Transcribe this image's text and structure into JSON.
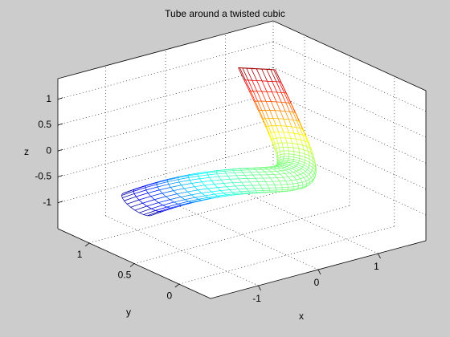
{
  "chart_data": {
    "type": "tube3d",
    "title": "Tube around a twisted cubic",
    "xlabel": "x",
    "ylabel": "y",
    "zlabel": "z",
    "x": [
      -1,
      -0.95,
      -0.9,
      -0.85,
      -0.8,
      -0.75,
      -0.7,
      -0.65,
      -0.6,
      -0.55,
      -0.5,
      -0.45,
      -0.4,
      -0.35,
      -0.3,
      -0.25,
      -0.2,
      -0.15,
      -0.1,
      -0.05,
      0,
      0.05,
      0.1,
      0.15,
      0.2,
      0.25,
      0.3,
      0.35,
      0.4,
      0.45,
      0.5,
      0.55,
      0.6,
      0.65,
      0.7,
      0.75,
      0.8,
      0.85,
      0.9,
      0.95,
      1
    ],
    "y": [
      1,
      0.9025,
      0.81,
      0.7225,
      0.64,
      0.5625,
      0.49,
      0.4225,
      0.36,
      0.3025,
      0.25,
      0.2025,
      0.16,
      0.1225,
      0.09,
      0.0625,
      0.04,
      0.0225,
      0.01,
      0.0025,
      0,
      0.0025,
      0.01,
      0.0225,
      0.04,
      0.0625,
      0.09,
      0.1225,
      0.16,
      0.2025,
      0.25,
      0.3025,
      0.36,
      0.4225,
      0.49,
      0.5625,
      0.64,
      0.7225,
      0.81,
      0.9025,
      1
    ],
    "z": [
      -1,
      -0.8574,
      -0.729,
      -0.6141,
      -0.512,
      -0.4219,
      -0.343,
      -0.2746,
      -0.216,
      -0.1664,
      -0.125,
      -0.0911,
      -0.064,
      -0.0429,
      -0.027,
      -0.0156,
      -0.008,
      -0.0034,
      -0.001,
      -0.0001,
      0,
      0.0001,
      0.001,
      0.0034,
      0.008,
      0.0156,
      0.027,
      0.0429,
      0.064,
      0.0911,
      0.125,
      0.1664,
      0.216,
      0.2746,
      0.343,
      0.4219,
      0.512,
      0.6141,
      0.729,
      0.8574,
      1
    ],
    "xlim": [
      -1.8,
      1.8
    ],
    "ylim": [
      -0.35,
      1.35
    ],
    "zlim": [
      -1.5,
      1.4
    ],
    "xticks": [
      -1,
      0,
      1
    ],
    "yticks": [
      0,
      0.5,
      1
    ],
    "zticks": [
      -1,
      -0.5,
      0,
      0.5,
      1
    ],
    "colormap": "jet",
    "grid": true
  }
}
